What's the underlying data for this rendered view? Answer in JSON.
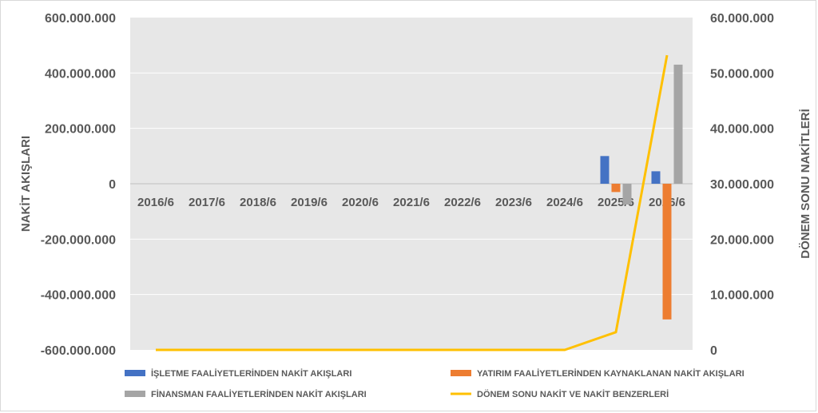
{
  "chart_data": {
    "type": "bar",
    "categories": [
      "2016/6",
      "2017/6",
      "2018/6",
      "2019/6",
      "2020/6",
      "2021/6",
      "2022/6",
      "2023/6",
      "2024/6",
      "2025/6",
      "2026/6"
    ],
    "ylabel": "NAKİT AKIŞLARI",
    "y2label": "DÖNEM SONU NAKİTLERİ",
    "ylim": [
      -600000000,
      600000000
    ],
    "y2lim": [
      0,
      60000000
    ],
    "yticks": [
      "600.000.000",
      "400.000.000",
      "200.000.000",
      "0",
      "-200.000.000",
      "-400.000.000",
      "-600.000.000"
    ],
    "y2ticks": [
      "60.000.000",
      "50.000.000",
      "40.000.000",
      "30.000.000",
      "20.000.000",
      "10.000.000",
      "0"
    ],
    "grid": true,
    "legend_position": "bottom",
    "series": [
      {
        "name": "İŞLETME FAALİYETLERİNDEN NAKİT AKIŞLARI",
        "type": "bar",
        "axis": "left",
        "color": "#4472c4",
        "values": [
          0,
          0,
          0,
          0,
          0,
          0,
          0,
          0,
          0,
          100000000,
          45000000
        ]
      },
      {
        "name": "YATIRIM FAALİYETLERİNDEN KAYNAKLANAN NAKİT AKIŞLARI",
        "type": "bar",
        "axis": "left",
        "color": "#ed7d31",
        "values": [
          0,
          0,
          0,
          0,
          0,
          0,
          0,
          0,
          0,
          -30000000,
          -490000000
        ]
      },
      {
        "name": "FİNANSMAN FAALİYETLERİNDEN NAKİT AKIŞLARI",
        "type": "bar",
        "axis": "left",
        "color": "#a5a5a5",
        "values": [
          0,
          0,
          0,
          0,
          0,
          0,
          0,
          0,
          0,
          -75000000,
          430000000
        ]
      },
      {
        "name": "DÖNEM SONU NAKİT VE NAKİT BENZERLERİ",
        "type": "line",
        "axis": "right",
        "color": "#ffc000",
        "values": [
          0,
          0,
          0,
          0,
          0,
          0,
          0,
          0,
          0,
          3200000,
          53200000
        ]
      }
    ]
  }
}
